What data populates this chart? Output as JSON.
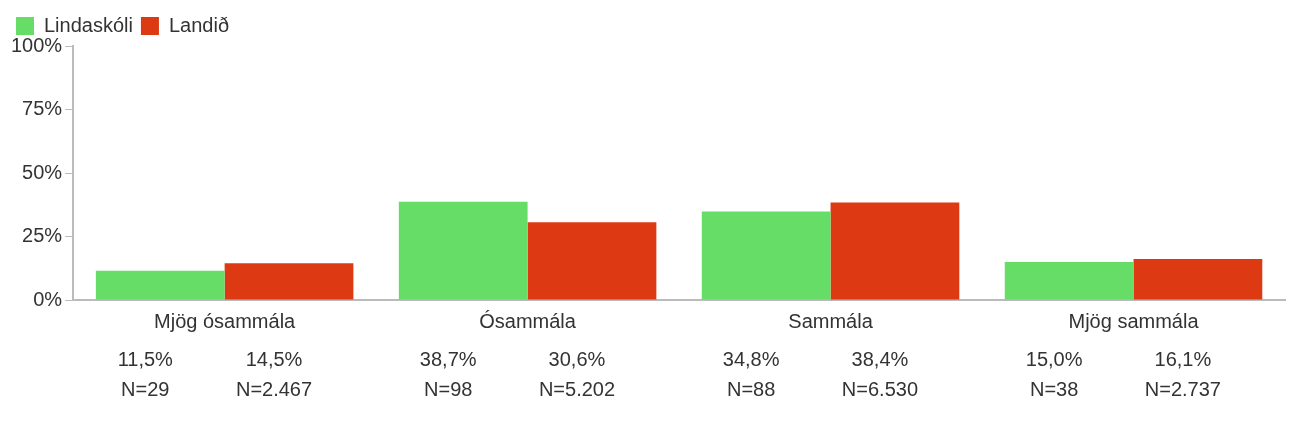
{
  "chart_data": {
    "type": "bar",
    "categories": [
      "Mjög ósammála",
      "Ósammála",
      "Sammála",
      "Mjög sammála"
    ],
    "series": [
      {
        "name": "Lindaskóli",
        "color": "#66dd66",
        "values": [
          11.5,
          38.7,
          34.8,
          15.0
        ],
        "value_labels": [
          "11,5%\nN=29",
          "38,7%\nN=98",
          "34,8%\nN=88",
          "15,0%\nN=38"
        ]
      },
      {
        "name": "Landið",
        "color": "#dd3a14",
        "values": [
          14.5,
          30.6,
          38.4,
          16.1
        ],
        "value_labels": [
          "14,5%\nN=2.467",
          "30,6%\nN=5.202",
          "38,4%\nN=6.530",
          "16,1%\nN=2.737"
        ]
      }
    ],
    "ylim": [
      0,
      100
    ],
    "yticks": [
      {
        "value": 0,
        "label": "0%"
      },
      {
        "value": 25,
        "label": "25%"
      },
      {
        "value": 50,
        "label": "50%"
      },
      {
        "value": 75,
        "label": "75%"
      },
      {
        "value": 100,
        "label": "100%"
      }
    ],
    "grid": false,
    "legend": "top left"
  }
}
